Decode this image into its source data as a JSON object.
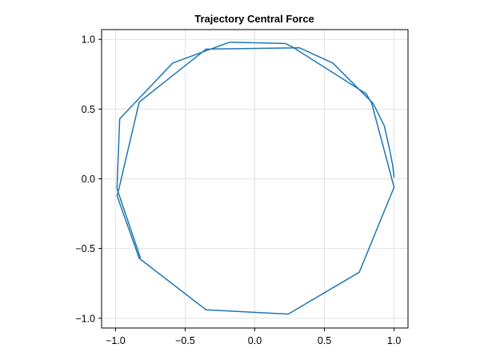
{
  "chart_data": {
    "type": "line",
    "title": "Trajectory Central Force",
    "xlabel": "",
    "ylabel": "",
    "xlim": [
      -1.1,
      1.1
    ],
    "ylim": [
      -1.07,
      1.07
    ],
    "xticks": [
      -1.0,
      -0.5,
      0.0,
      0.5,
      1.0
    ],
    "yticks": [
      -1.0,
      -0.5,
      0.0,
      0.5,
      1.0
    ],
    "xtick_labels": [
      "−1.0",
      "−0.5",
      "0.0",
      "0.5",
      "1.0"
    ],
    "ytick_labels": [
      "−1.0",
      "−0.5",
      "0.0",
      "0.5",
      "1.0"
    ],
    "grid": true,
    "line_color": "#1f77b4",
    "series": [
      {
        "x": [
          1.0,
          0.99,
          0.97,
          0.93,
          0.85,
          0.56,
          0.32,
          -0.35,
          -0.83,
          -0.98,
          -0.99,
          -0.83,
          -0.35,
          0.24,
          0.75,
          1.0,
          0.84,
          0.8,
          0.28,
          0.22,
          -0.18,
          -0.59,
          -0.97,
          -0.99,
          -0.82
        ],
        "y": [
          0.01,
          0.1,
          0.2,
          0.38,
          0.54,
          0.83,
          0.94,
          0.93,
          0.55,
          -0.09,
          -0.12,
          -0.57,
          -0.94,
          -0.97,
          -0.67,
          -0.06,
          0.54,
          0.61,
          0.94,
          0.97,
          0.98,
          0.83,
          0.43,
          -0.07,
          -0.57
        ]
      }
    ]
  }
}
